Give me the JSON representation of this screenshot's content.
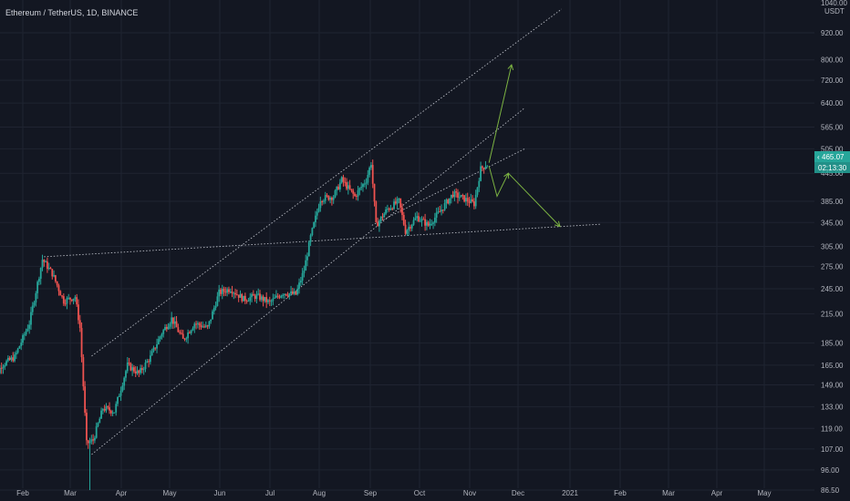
{
  "header": {
    "symbol_line": "Ethereum / TetherUS, 1D, BINANCE"
  },
  "axis": {
    "currency_top": "1040.00",
    "currency_unit": "USDT"
  },
  "price_badge": {
    "price": "465.07",
    "countdown": "02:13:30"
  },
  "colors": {
    "background": "#131722",
    "up_candle": "#26a69a",
    "down_candle": "#ef5350",
    "trend_lines": "#d1d4dc",
    "arrows": "#7cb342",
    "axis_text": "#b2b5be"
  },
  "chart_data": {
    "type": "candlestick",
    "title": "Ethereum / TetherUS, 1D, BINANCE",
    "y_scale": "log",
    "ylim": [
      86.5,
      1040
    ],
    "y_ticks": [
      920,
      800,
      720,
      640,
      565,
      505,
      445,
      385,
      345,
      305,
      275,
      245,
      215,
      185,
      165,
      149,
      133,
      119,
      107,
      96,
      86.5
    ],
    "y_tick_labels": [
      "920.00",
      "800.00",
      "720.00",
      "640.00",
      "565.00",
      "505.00",
      "445.00",
      "385.00",
      "345.00",
      "305.00",
      "275.00",
      "245.00",
      "215.00",
      "185.00",
      "165.00",
      "149.00",
      "133.00",
      "119.00",
      "107.00",
      "96.00",
      "86.50"
    ],
    "x_ticks": [
      "Feb",
      "Mar",
      "Apr",
      "May",
      "Jun",
      "Jul",
      "Aug",
      "Sep",
      "Oct",
      "Nov",
      "Dec",
      "2021",
      "Feb",
      "Mar",
      "Apr",
      "May"
    ],
    "last_price": 465.07,
    "price_path": [
      [
        "2020-01-12",
        145
      ],
      [
        "2020-01-20",
        165
      ],
      [
        "2020-01-28",
        172
      ],
      [
        "2020-02-06",
        205
      ],
      [
        "2020-02-14",
        285
      ],
      [
        "2020-02-20",
        265
      ],
      [
        "2020-02-27",
        230
      ],
      [
        "2020-03-05",
        235
      ],
      [
        "2020-03-08",
        200
      ],
      [
        "2020-03-12",
        110
      ],
      [
        "2020-03-16",
        112
      ],
      [
        "2020-03-22",
        132
      ],
      [
        "2020-03-29",
        130
      ],
      [
        "2020-04-06",
        165
      ],
      [
        "2020-04-13",
        158
      ],
      [
        "2020-04-20",
        172
      ],
      [
        "2020-04-27",
        195
      ],
      [
        "2020-05-03",
        210
      ],
      [
        "2020-05-10",
        188
      ],
      [
        "2020-05-17",
        205
      ],
      [
        "2020-05-25",
        200
      ],
      [
        "2020-06-01",
        240
      ],
      [
        "2020-06-08",
        245
      ],
      [
        "2020-06-16",
        232
      ],
      [
        "2020-06-24",
        236
      ],
      [
        "2020-07-02",
        228
      ],
      [
        "2020-07-10",
        240
      ],
      [
        "2020-07-18",
        238
      ],
      [
        "2020-07-23",
        270
      ],
      [
        "2020-07-27",
        320
      ],
      [
        "2020-08-02",
        390
      ],
      [
        "2020-08-10",
        395
      ],
      [
        "2020-08-15",
        430
      ],
      [
        "2020-08-23",
        395
      ],
      [
        "2020-08-30",
        430
      ],
      [
        "2020-09-02",
        470
      ],
      [
        "2020-09-05",
        340
      ],
      [
        "2020-09-12",
        370
      ],
      [
        "2020-09-19",
        385
      ],
      [
        "2020-09-23",
        330
      ],
      [
        "2020-09-30",
        355
      ],
      [
        "2020-10-07",
        340
      ],
      [
        "2020-10-14",
        365
      ],
      [
        "2020-10-22",
        400
      ],
      [
        "2020-10-29",
        390
      ],
      [
        "2020-11-04",
        380
      ],
      [
        "2020-11-08",
        455
      ],
      [
        "2020-11-11",
        465
      ]
    ],
    "annotations": [
      "ascending channel (upper, middle, lower dotted lines)",
      "horizontal support line from Feb high",
      "green projection arrows: breakout up to ~780, alternative drop to ~340"
    ],
    "grid": true
  }
}
